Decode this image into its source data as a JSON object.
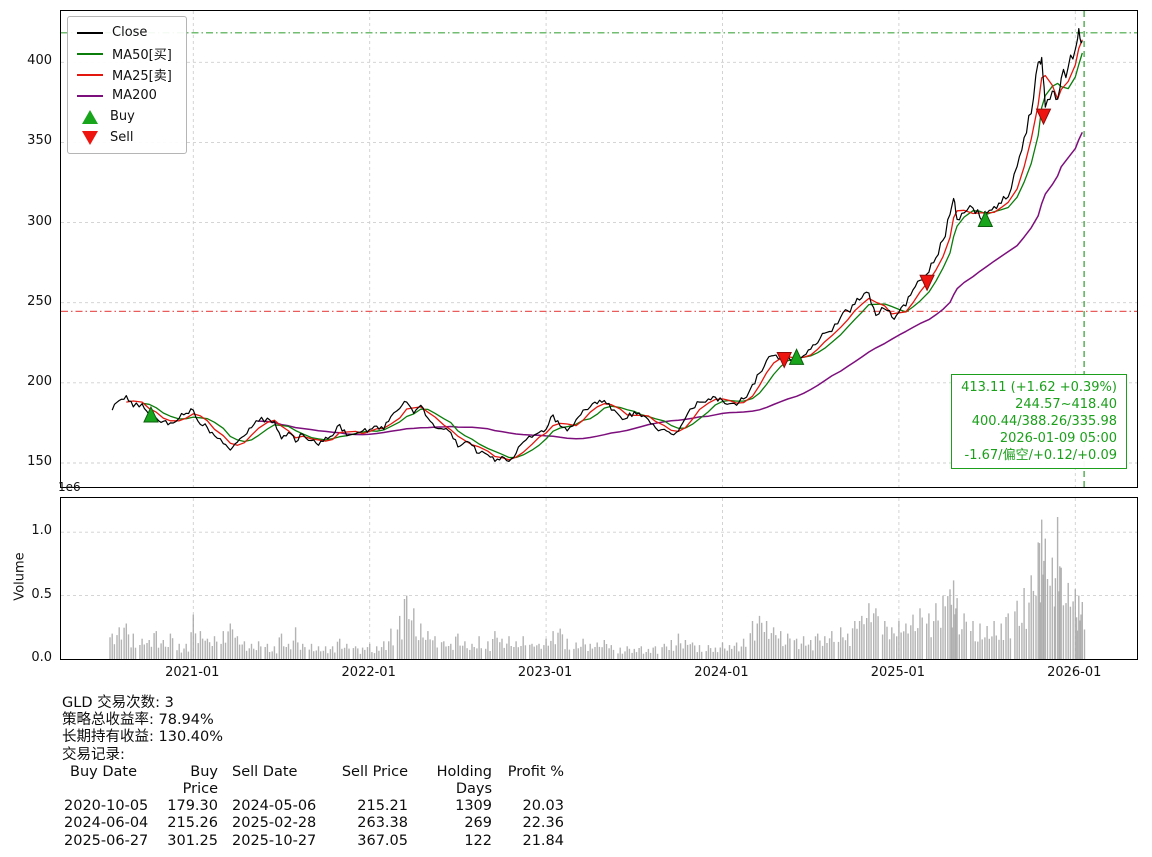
{
  "annotation": {
    "color": "#1ca01c",
    "lines": [
      "413.11 (+1.62 +0.39%)",
      "244.57~418.40",
      "400.44/388.26/335.98",
      "2026-01-09 05:00",
      "-1.67/偏空/+0.12/+0.09"
    ]
  },
  "stats": {
    "summary": [
      "GLD 交易次数: 3",
      "策略总收益率: 78.94%",
      "长期持有收益: 130.40%",
      "交易记录:"
    ],
    "trades": {
      "headers": [
        "Buy Date",
        "Buy Price",
        "Sell Date",
        "Sell Price",
        "Holding Days",
        "Profit %"
      ],
      "rows": [
        [
          "2020-10-05",
          "179.30",
          "2024-05-06",
          "215.21",
          "1309",
          "20.03"
        ],
        [
          "2024-06-04",
          "215.26",
          "2025-02-28",
          "263.38",
          "269",
          "22.36"
        ],
        [
          "2025-06-27",
          "301.25",
          "2025-10-27",
          "367.05",
          "122",
          "21.84"
        ]
      ]
    }
  },
  "chart_data": {
    "type": "line",
    "title": "",
    "xlim": [
      2020.25,
      2026.35
    ],
    "ylim": [
      135,
      432
    ],
    "yticks": [
      150,
      200,
      250,
      300,
      350,
      400
    ],
    "xticks": [
      2021.0,
      2022.0,
      2023.0,
      2024.0,
      2025.0,
      2026.0
    ],
    "xtick_labels": [
      "2021-01",
      "2022-01",
      "2023-01",
      "2024-01",
      "2025-01",
      "2026-01"
    ],
    "grid": true,
    "legend_position": "upper-left",
    "volume_axis": {
      "label": "Volume",
      "offset_label": "1e6",
      "ylim": [
        0,
        1.27
      ],
      "yticks": [
        0.0,
        0.5,
        1.0
      ]
    },
    "x": [
      2020.54,
      2020.58,
      2020.62,
      2020.66,
      2020.71,
      2020.75,
      2020.79,
      2020.83,
      2020.87,
      2020.92,
      2020.96,
      2021.0,
      2021.04,
      2021.08,
      2021.12,
      2021.17,
      2021.21,
      2021.25,
      2021.29,
      2021.33,
      2021.37,
      2021.42,
      2021.46,
      2021.5,
      2021.54,
      2021.58,
      2021.62,
      2021.67,
      2021.71,
      2021.75,
      2021.79,
      2021.83,
      2021.87,
      2021.92,
      2021.96,
      2022.0,
      2022.04,
      2022.08,
      2022.12,
      2022.17,
      2022.21,
      2022.25,
      2022.29,
      2022.33,
      2022.37,
      2022.42,
      2022.46,
      2022.5,
      2022.54,
      2022.58,
      2022.62,
      2022.67,
      2022.71,
      2022.75,
      2022.79,
      2022.83,
      2022.87,
      2022.92,
      2022.96,
      2023.0,
      2023.04,
      2023.08,
      2023.12,
      2023.17,
      2023.21,
      2023.25,
      2023.29,
      2023.33,
      2023.37,
      2023.42,
      2023.46,
      2023.5,
      2023.54,
      2023.58,
      2023.62,
      2023.67,
      2023.71,
      2023.75,
      2023.79,
      2023.83,
      2023.87,
      2023.92,
      2023.96,
      2024.0,
      2024.04,
      2024.08,
      2024.12,
      2024.17,
      2024.21,
      2024.25,
      2024.29,
      2024.33,
      2024.37,
      2024.42,
      2024.46,
      2024.5,
      2024.54,
      2024.58,
      2024.62,
      2024.67,
      2024.71,
      2024.75,
      2024.79,
      2024.83,
      2024.87,
      2024.92,
      2024.96,
      2025.0,
      2025.04,
      2025.08,
      2025.12,
      2025.17,
      2025.21,
      2025.25,
      2025.29,
      2025.31,
      2025.33,
      2025.37,
      2025.42,
      2025.46,
      2025.5,
      2025.54,
      2025.58,
      2025.62,
      2025.67,
      2025.71,
      2025.75,
      2025.79,
      2025.81,
      2025.83,
      2025.87,
      2025.9,
      2025.92,
      2025.96,
      2026.0,
      2026.02,
      2026.04
    ],
    "series": [
      {
        "name": "Close",
        "color": "#000000",
        "width": 1.2,
        "values": [
          183,
          189,
          192,
          185,
          187,
          180,
          178,
          176,
          175,
          178,
          181,
          183,
          174,
          172,
          167,
          162,
          158,
          163,
          167,
          172,
          176,
          178,
          176,
          165,
          169,
          163,
          168,
          164,
          161,
          166,
          167,
          174,
          167,
          168,
          170,
          171,
          173,
          171,
          179,
          184,
          188,
          181,
          186,
          178,
          172,
          171,
          169,
          160,
          163,
          161,
          156,
          155,
          151,
          154,
          151,
          156,
          163,
          166,
          169,
          171,
          180,
          173,
          170,
          177,
          183,
          185,
          187,
          189,
          183,
          179,
          178,
          182,
          179,
          177,
          172,
          171,
          168,
          170,
          178,
          184,
          188,
          190,
          191,
          189,
          187,
          186,
          190,
          199,
          206,
          214,
          217,
          215,
          217,
          214,
          217,
          221,
          225,
          231,
          232,
          241,
          245,
          249,
          253,
          256,
          242,
          246,
          241,
          244,
          248,
          258,
          264,
          269,
          278,
          289,
          305,
          315,
          302,
          306,
          309,
          303,
          306,
          310,
          312,
          316,
          335,
          353,
          368,
          400,
          403,
          372,
          382,
          377,
          390,
          397,
          408,
          421,
          413.11
        ]
      },
      {
        "name": "MA50[买]",
        "color": "#0a7d0a",
        "width": 1.3,
        "window": 5,
        "derived_from": "Close"
      },
      {
        "name": "MA25[卖]",
        "color": "#e3170d",
        "width": 1.3,
        "window": 3,
        "derived_from": "Close"
      },
      {
        "name": "MA200",
        "color": "#7d0f7d",
        "width": 1.5,
        "window": 21,
        "derived_from": "Close"
      }
    ],
    "volume": [
      0.2,
      0.25,
      0.28,
      0.2,
      0.16,
      0.15,
      0.22,
      0.15,
      0.2,
      0.12,
      0.12,
      0.35,
      0.22,
      0.16,
      0.18,
      0.22,
      0.28,
      0.18,
      0.14,
      0.12,
      0.14,
      0.12,
      0.1,
      0.2,
      0.12,
      0.25,
      0.12,
      0.12,
      0.1,
      0.1,
      0.1,
      0.16,
      0.12,
      0.1,
      0.09,
      0.12,
      0.1,
      0.14,
      0.24,
      0.34,
      0.5,
      0.4,
      0.28,
      0.22,
      0.18,
      0.14,
      0.12,
      0.2,
      0.14,
      0.12,
      0.18,
      0.14,
      0.22,
      0.16,
      0.18,
      0.14,
      0.18,
      0.12,
      0.12,
      0.16,
      0.22,
      0.24,
      0.16,
      0.13,
      0.16,
      0.12,
      0.13,
      0.15,
      0.11,
      0.09,
      0.1,
      0.08,
      0.1,
      0.08,
      0.1,
      0.12,
      0.15,
      0.2,
      0.15,
      0.13,
      0.11,
      0.11,
      0.09,
      0.13,
      0.11,
      0.13,
      0.16,
      0.3,
      0.34,
      0.3,
      0.25,
      0.22,
      0.2,
      0.16,
      0.18,
      0.15,
      0.2,
      0.18,
      0.22,
      0.25,
      0.2,
      0.3,
      0.34,
      0.44,
      0.4,
      0.3,
      0.25,
      0.3,
      0.28,
      0.35,
      0.4,
      0.36,
      0.44,
      0.5,
      0.55,
      0.62,
      0.48,
      0.36,
      0.3,
      0.28,
      0.26,
      0.3,
      0.28,
      0.36,
      0.46,
      0.56,
      0.66,
      0.92,
      1.1,
      0.95,
      0.8,
      1.12,
      0.72,
      0.6,
      0.55,
      0.5,
      0.45
    ],
    "hlines": [
      {
        "y": 418.4,
        "color": "#2e9e2e",
        "style": "dashdot"
      },
      {
        "y": 244.57,
        "color": "#e84a4a",
        "style": "dashdot"
      }
    ],
    "vlines": [
      {
        "x": 2026.05,
        "color": "#2e9e2e",
        "style": "dashed"
      }
    ],
    "markers": {
      "buy": {
        "label": "Buy",
        "color": "#18a51c",
        "edge": "#0b5e0d"
      },
      "sell": {
        "label": "Sell",
        "color": "#ee1510",
        "edge": "#8f0b0b"
      }
    },
    "buys": [
      {
        "date": "2020-10-05",
        "x": 2020.76,
        "price": 179.3
      },
      {
        "date": "2024-06-04",
        "x": 2024.42,
        "price": 215.26
      },
      {
        "date": "2025-06-27",
        "x": 2025.49,
        "price": 301.25
      }
    ],
    "sells": [
      {
        "date": "2024-05-06",
        "x": 2024.35,
        "price": 215.21
      },
      {
        "date": "2025-02-28",
        "x": 2025.16,
        "price": 263.38
      },
      {
        "date": "2025-10-27",
        "x": 2025.82,
        "price": 367.05
      }
    ]
  }
}
